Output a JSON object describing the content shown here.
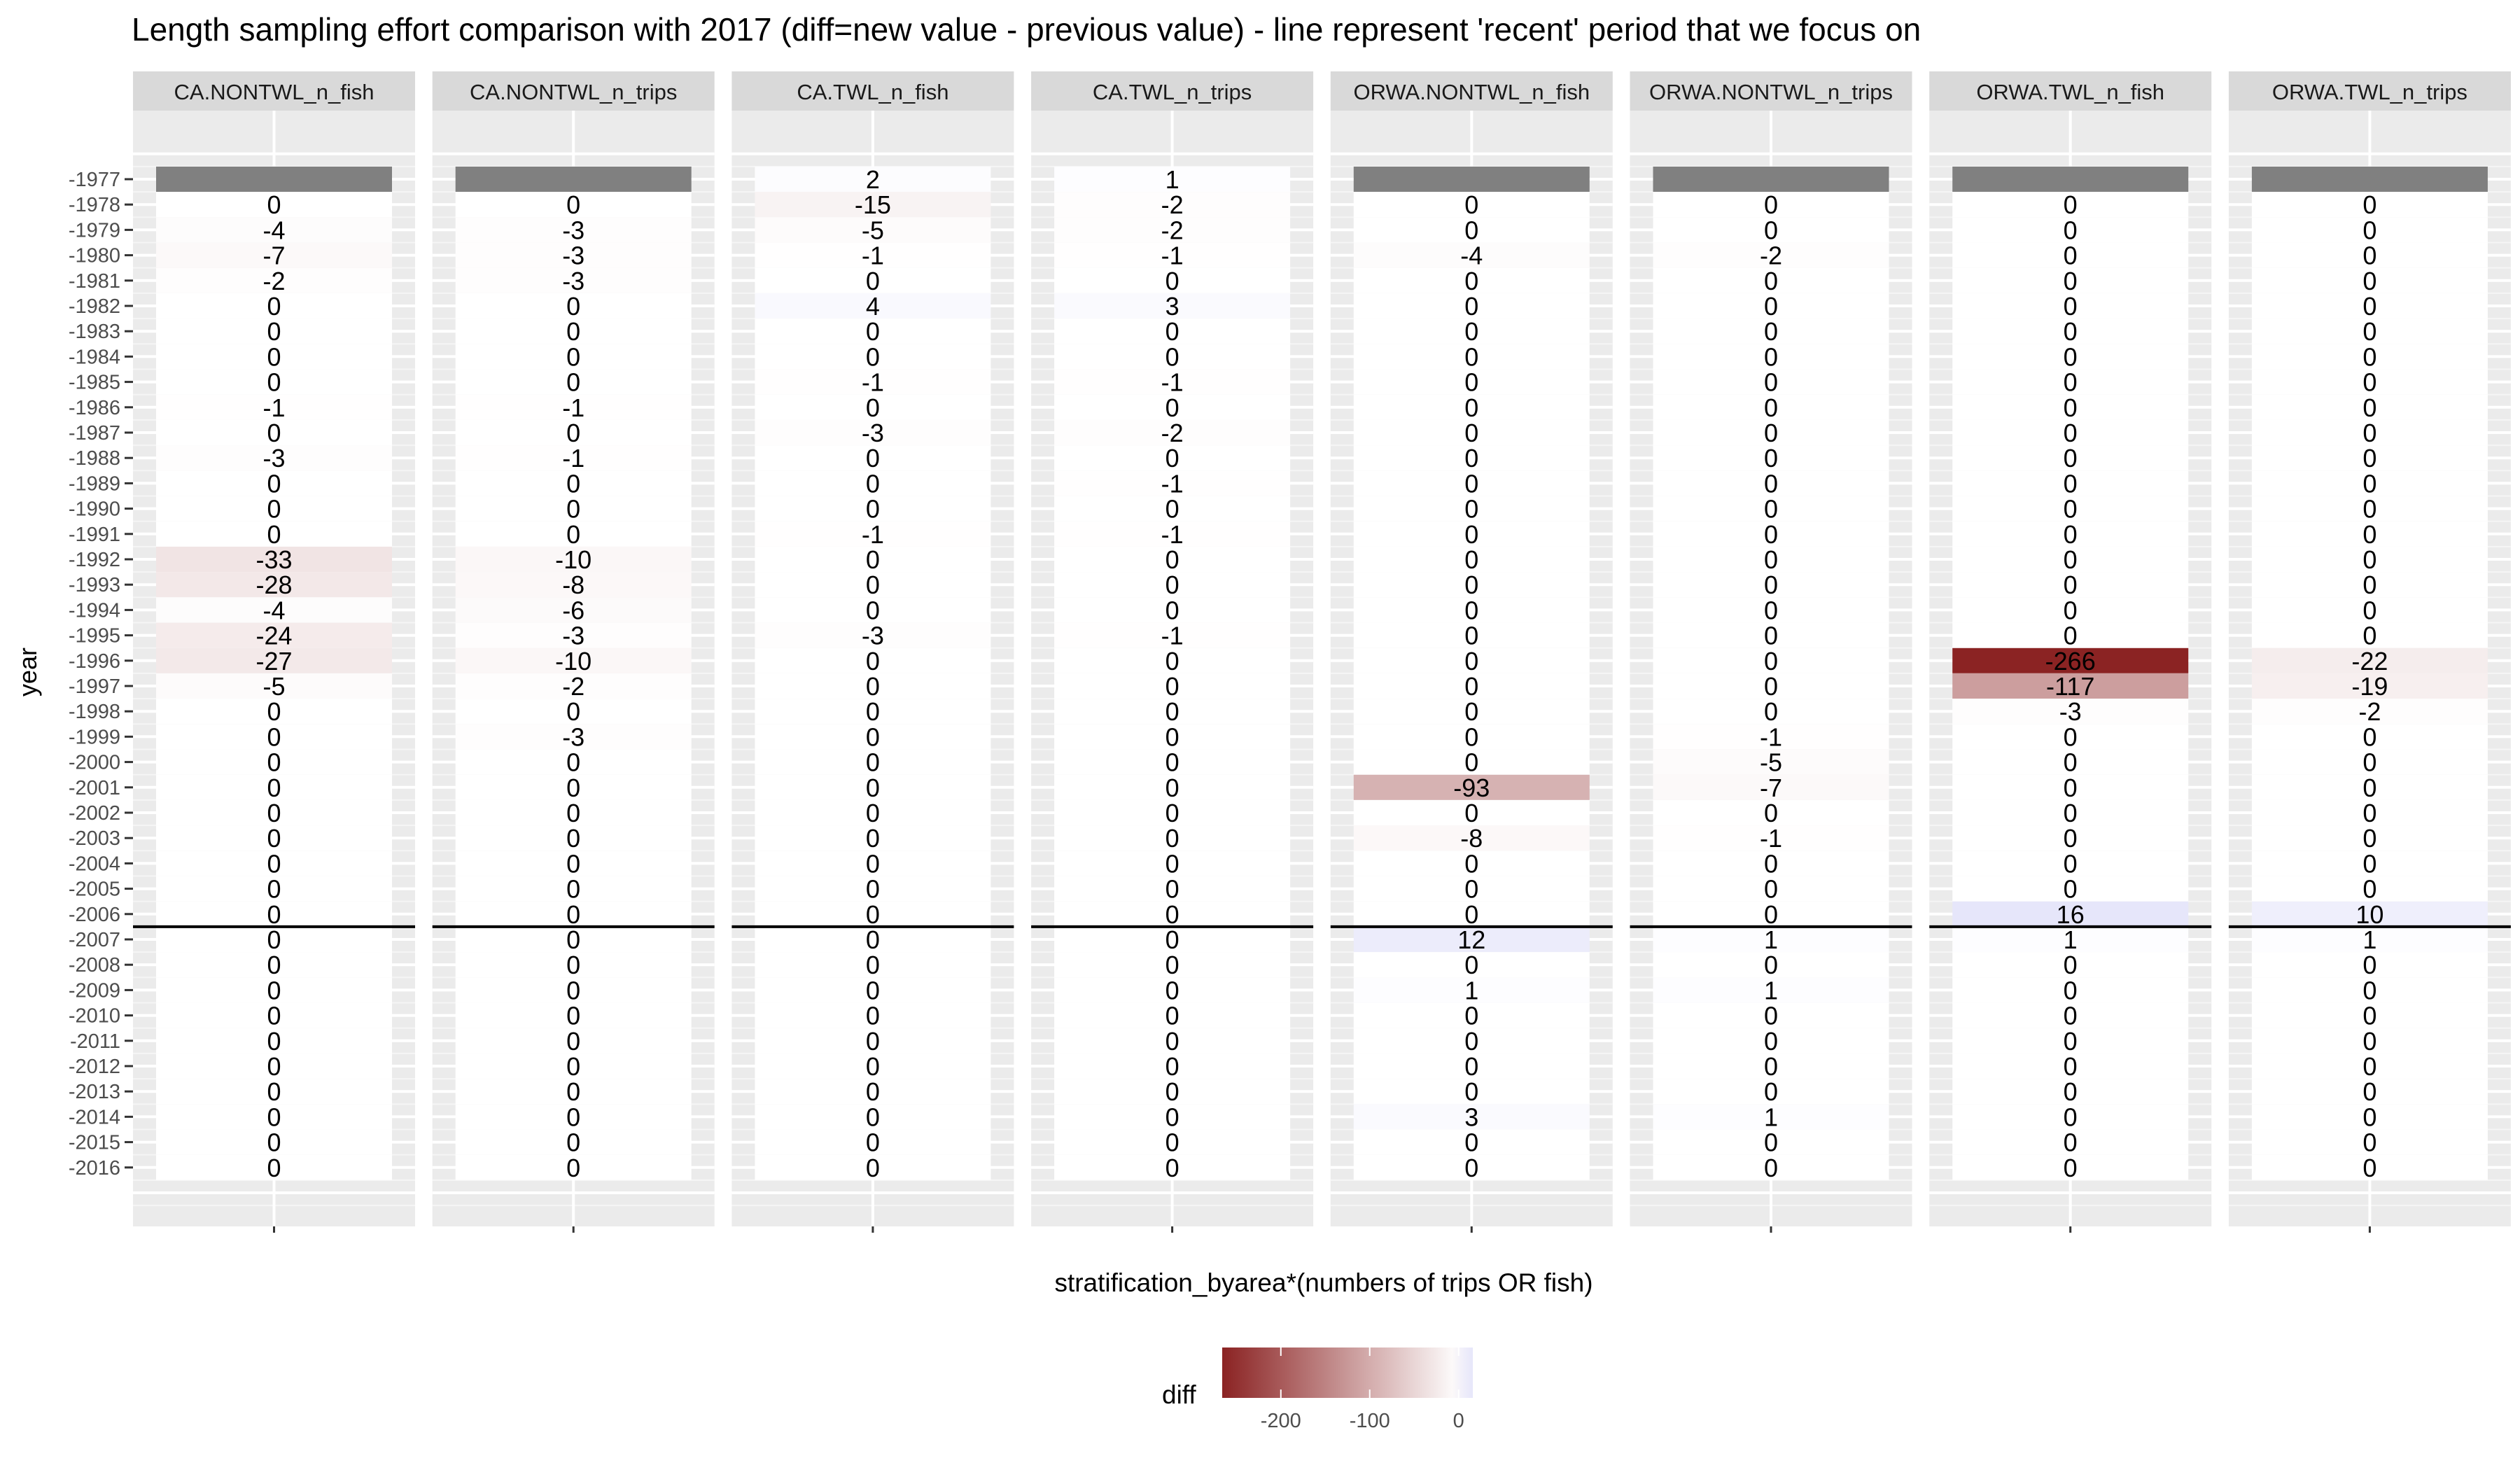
{
  "chart_data": {
    "type": "heatmap",
    "title": "Length sampling effort comparison with 2017 (diff=new value - previous value) - line represent 'recent' period that we focus on",
    "xlabel": "stratification_byarea*(numbers of trips OR fish)",
    "ylabel": "year",
    "facets": [
      "CA.NONTWL_n_fish",
      "CA.NONTWL_n_trips",
      "CA.TWL_n_fish",
      "CA.TWL_n_trips",
      "ORWA.NONTWL_n_fish",
      "ORWA.NONTWL_n_trips",
      "ORWA.TWL_n_fish",
      "ORWA.TWL_n_trips"
    ],
    "years": [
      "-1977",
      "-1978",
      "-1979",
      "-1980",
      "-1981",
      "-1982",
      "-1983",
      "-1984",
      "-1985",
      "-1986",
      "-1987",
      "-1988",
      "-1989",
      "-1990",
      "-1991",
      "-1992",
      "-1993",
      "-1994",
      "-1995",
      "-1996",
      "-1997",
      "-1998",
      "-1999",
      "-2000",
      "-2001",
      "-2002",
      "-2003",
      "-2004",
      "-2005",
      "-2006",
      "-2007",
      "-2008",
      "-2009",
      "-2010",
      "-2011",
      "-2012",
      "-2013",
      "-2014",
      "-2015",
      "-2016"
    ],
    "values": [
      [
        null,
        0,
        -4,
        -7,
        -2,
        0,
        0,
        0,
        0,
        -1,
        0,
        -3,
        0,
        0,
        0,
        -33,
        -28,
        -4,
        -24,
        -27,
        -5,
        0,
        0,
        0,
        0,
        0,
        0,
        0,
        0,
        0,
        0,
        0,
        0,
        0,
        0,
        0,
        0,
        0,
        0,
        0
      ],
      [
        null,
        0,
        -3,
        -3,
        -3,
        0,
        0,
        0,
        0,
        -1,
        0,
        -1,
        0,
        0,
        0,
        -10,
        -8,
        -6,
        -3,
        -10,
        -2,
        0,
        -3,
        0,
        0,
        0,
        0,
        0,
        0,
        0,
        0,
        0,
        0,
        0,
        0,
        0,
        0,
        0,
        0,
        0
      ],
      [
        2,
        -15,
        -5,
        -1,
        0,
        4,
        0,
        0,
        -1,
        0,
        -3,
        0,
        0,
        0,
        -1,
        0,
        0,
        0,
        -3,
        0,
        0,
        0,
        0,
        0,
        0,
        0,
        0,
        0,
        0,
        0,
        0,
        0,
        0,
        0,
        0,
        0,
        0,
        0,
        0,
        0
      ],
      [
        1,
        -2,
        -2,
        -1,
        0,
        3,
        0,
        0,
        -1,
        0,
        -2,
        0,
        -1,
        0,
        -1,
        0,
        0,
        0,
        -1,
        0,
        0,
        0,
        0,
        0,
        0,
        0,
        0,
        0,
        0,
        0,
        0,
        0,
        0,
        0,
        0,
        0,
        0,
        0,
        0,
        0
      ],
      [
        null,
        0,
        0,
        -4,
        0,
        0,
        0,
        0,
        0,
        0,
        0,
        0,
        0,
        0,
        0,
        0,
        0,
        0,
        0,
        0,
        0,
        0,
        0,
        0,
        -93,
        0,
        -8,
        0,
        0,
        0,
        12,
        0,
        1,
        0,
        0,
        0,
        0,
        3,
        0,
        0
      ],
      [
        null,
        0,
        0,
        -2,
        0,
        0,
        0,
        0,
        0,
        0,
        0,
        0,
        0,
        0,
        0,
        0,
        0,
        0,
        0,
        0,
        0,
        0,
        -1,
        -5,
        -7,
        0,
        -1,
        0,
        0,
        0,
        1,
        0,
        1,
        0,
        0,
        0,
        0,
        1,
        0,
        0
      ],
      [
        null,
        0,
        0,
        0,
        0,
        0,
        0,
        0,
        0,
        0,
        0,
        0,
        0,
        0,
        0,
        0,
        0,
        0,
        0,
        -266,
        -117,
        -3,
        0,
        0,
        0,
        0,
        0,
        0,
        0,
        16,
        1,
        0,
        0,
        0,
        0,
        0,
        0,
        0,
        0,
        0
      ],
      [
        null,
        0,
        0,
        0,
        0,
        0,
        0,
        0,
        0,
        0,
        0,
        0,
        0,
        0,
        0,
        0,
        0,
        0,
        0,
        -22,
        -19,
        -2,
        0,
        0,
        0,
        0,
        0,
        0,
        0,
        10,
        1,
        0,
        0,
        0,
        0,
        0,
        0,
        0,
        0,
        0
      ]
    ],
    "reference_line_between": [
      "-2006",
      "-2007"
    ],
    "legend": {
      "title": "diff",
      "position": "bottom",
      "range": [
        -266,
        16
      ],
      "breaks": [
        -200,
        -100,
        0
      ],
      "break_labels": [
        "-200",
        "-100",
        "0"
      ],
      "low_color": "#8b2323",
      "mid_color": "#ffffff",
      "high_color": "#e6e6fa",
      "na_color": "#808080"
    },
    "panel_background": "#ebebeb",
    "strip_background": "#d9d9d9",
    "grid": true
  }
}
